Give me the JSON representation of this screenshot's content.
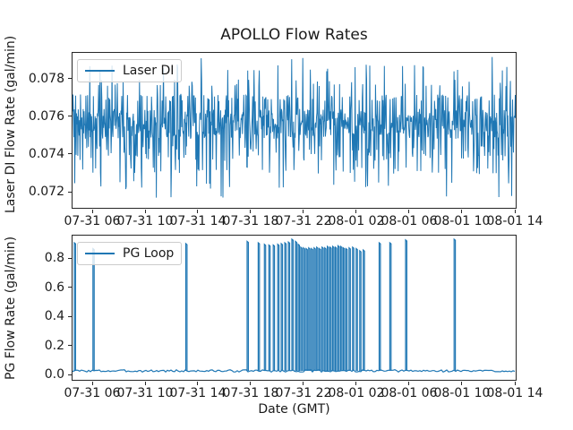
{
  "colors": {
    "line": "#1f77b4",
    "background": "#ffffff",
    "spine": "#262626"
  },
  "chart_data": [
    {
      "type": "line",
      "title": "APOLLO Flow Rates",
      "ylabel": "Laser DI Flow Rate (gal/min)",
      "legend": {
        "label": "Laser DI",
        "loc": "upper left"
      },
      "series": [
        {
          "name": "Laser DI",
          "color": "#1f77b4"
        }
      ],
      "ylim": [
        0.0711,
        0.0794
      ],
      "grid": false,
      "yticks": {
        "values": [
          0.072,
          0.074,
          0.076,
          0.078
        ],
        "labels": [
          "0.072",
          "0.074",
          "0.076",
          "0.078"
        ]
      },
      "xticks": {
        "fracs": [
          0.0463,
          0.165,
          0.2837,
          0.4024,
          0.5211,
          0.6398,
          0.7585,
          0.8772,
          0.996
        ],
        "labels": [
          "07-31 06",
          "07-31 10",
          "07-31 14",
          "07-31 18",
          "07-31 22",
          "08-01 02",
          "08-01 06",
          "08-01 10",
          "08-01 14"
        ]
      },
      "signal_model": {
        "description": "dense quantized noise band centered near 0.0755 gal/min spanning full time range",
        "seed": 7,
        "n": 1000,
        "levels": [
          {
            "value": 0.0756,
            "spread": 0.0008,
            "weight": 0.6
          },
          {
            "value": 0.077,
            "spread": 0.0002,
            "weight": 0.13
          },
          {
            "value": 0.074,
            "spread": 0.0004,
            "weight": 0.12
          },
          {
            "value": 0.0731,
            "spread": 0.0002,
            "weight": 0.05
          },
          {
            "value": 0.0778,
            "spread": 0.0002,
            "weight": 0.04
          },
          {
            "value": 0.0786,
            "spread": 0.0002,
            "weight": 0.025
          },
          {
            "value": 0.0724,
            "spread": 0.0003,
            "weight": 0.02
          },
          {
            "value": 0.0791,
            "spread": 0.0001,
            "weight": 0.008
          },
          {
            "value": 0.0717,
            "spread": 0.0001,
            "weight": 0.007
          }
        ]
      }
    },
    {
      "type": "line",
      "ylabel": "PG Flow Rate (gal/min)",
      "xlabel": "Date (GMT)",
      "legend": {
        "label": "PG Loop",
        "loc": "upper left"
      },
      "series": [
        {
          "name": "PG Loop",
          "color": "#1f77b4"
        }
      ],
      "ylim": [
        -0.04,
        0.96
      ],
      "grid": false,
      "yticks": {
        "values": [
          0.0,
          0.2,
          0.4,
          0.6,
          0.8
        ],
        "labels": [
          "0.0",
          "0.2",
          "0.4",
          "0.6",
          "0.8"
        ]
      },
      "xticks": {
        "fracs": [
          0.0463,
          0.165,
          0.2837,
          0.4024,
          0.5211,
          0.6398,
          0.7585,
          0.8772,
          0.996
        ],
        "labels": [
          "07-31 06",
          "07-31 10",
          "07-31 14",
          "07-31 18",
          "07-31 22",
          "08-01 02",
          "08-01 06",
          "08-01 10",
          "08-01 14"
        ]
      },
      "baseline": {
        "value": 0.022,
        "jitter": 0.008,
        "seed": 3
      },
      "spikes": [
        [
          0.004,
          0.91
        ],
        [
          0.046,
          0.87
        ],
        [
          0.2555,
          0.905
        ],
        [
          0.394,
          0.92
        ],
        [
          0.419,
          0.91
        ],
        [
          0.433,
          0.9
        ],
        [
          0.443,
          0.895
        ],
        [
          0.453,
          0.895
        ],
        [
          0.463,
          0.9
        ],
        [
          0.471,
          0.905
        ],
        [
          0.479,
          0.91
        ],
        [
          0.487,
          0.915
        ],
        [
          0.495,
          0.935
        ],
        [
          0.503,
          0.92
        ],
        [
          0.509,
          0.9
        ],
        [
          0.515,
          0.88
        ],
        [
          0.521,
          0.875
        ],
        [
          0.527,
          0.87
        ],
        [
          0.533,
          0.875
        ],
        [
          0.539,
          0.87
        ],
        [
          0.545,
          0.875
        ],
        [
          0.551,
          0.88
        ],
        [
          0.557,
          0.87
        ],
        [
          0.563,
          0.88
        ],
        [
          0.569,
          0.875
        ],
        [
          0.575,
          0.885
        ],
        [
          0.581,
          0.88
        ],
        [
          0.587,
          0.885
        ],
        [
          0.593,
          0.88
        ],
        [
          0.599,
          0.89
        ],
        [
          0.605,
          0.885
        ],
        [
          0.611,
          0.875
        ],
        [
          0.617,
          0.87
        ],
        [
          0.624,
          0.875
        ],
        [
          0.632,
          0.88
        ],
        [
          0.64,
          0.87
        ],
        [
          0.648,
          0.855
        ],
        [
          0.656,
          0.86
        ],
        [
          0.692,
          0.91
        ],
        [
          0.716,
          0.91
        ],
        [
          0.7515,
          0.93
        ],
        [
          0.861,
          0.935
        ]
      ]
    }
  ]
}
